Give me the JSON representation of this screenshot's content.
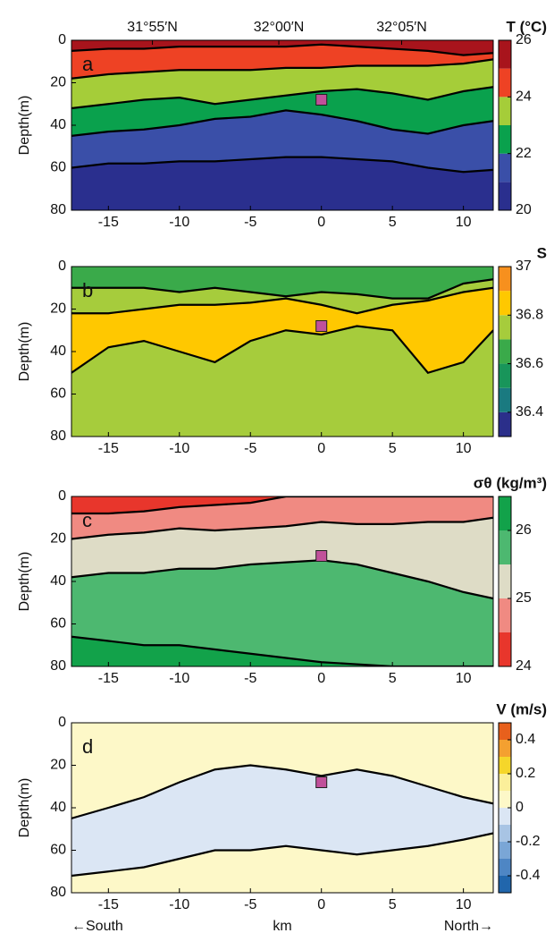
{
  "chart_data": [
    {
      "type": "contour",
      "title": "T (°C)",
      "panel_label": "a",
      "ylabel": "Depth(m)",
      "xlim": [
        -17.6,
        12.1
      ],
      "xticks": [
        -15,
        -10,
        -5,
        0,
        5,
        10
      ],
      "ylim": [
        0,
        80
      ],
      "yticks": [
        0,
        20,
        40,
        60,
        80
      ],
      "y_inverted": true,
      "x2ticks": [
        {
          "value": -11.9,
          "label": "31°55′N"
        },
        {
          "value": -3.0,
          "label": "32°00′N"
        },
        {
          "value": 5.65,
          "label": "32°05′N"
        }
      ],
      "x": [
        -17.6,
        -15,
        -12.5,
        -10,
        -7.5,
        -5,
        -2.5,
        0,
        2.5,
        5,
        7.5,
        10,
        12.1
      ],
      "contours": [
        {
          "level": 25,
          "depth": [
            5,
            4,
            4,
            3,
            3,
            3,
            3,
            2,
            3,
            4,
            5,
            7,
            6
          ]
        },
        {
          "level": 24,
          "depth": [
            18,
            16,
            15,
            14,
            14,
            14,
            13,
            13,
            12,
            12,
            12,
            11,
            9
          ]
        },
        {
          "level": 23,
          "depth": [
            32,
            30,
            28,
            27,
            30,
            28,
            26,
            24,
            23,
            25,
            28,
            24,
            22
          ]
        },
        {
          "level": 22,
          "depth": [
            45,
            43,
            42,
            40,
            37,
            36,
            33,
            35,
            38,
            42,
            44,
            40,
            38
          ]
        },
        {
          "level": 21,
          "depth": [
            60,
            58,
            58,
            57,
            57,
            56,
            55,
            55,
            56,
            57,
            60,
            62,
            61
          ]
        }
      ],
      "levels": [
        20,
        21,
        22,
        23,
        24,
        25,
        26
      ],
      "colors": [
        "#2a2f8e",
        "#3a4fa8",
        "#0aa14d",
        "#a5cd39",
        "#ee4224",
        "#a8141c"
      ],
      "clim": [
        20,
        26
      ],
      "cticks": [
        20,
        22,
        24,
        26
      ],
      "marker": {
        "x": 0,
        "y": 28,
        "color": "#c0509a"
      }
    },
    {
      "type": "contour",
      "title": "S",
      "panel_label": "b",
      "ylabel": "Depth(m)",
      "xlim": [
        -17.6,
        12.1
      ],
      "xticks": [
        -15,
        -10,
        -5,
        0,
        5,
        10
      ],
      "ylim": [
        0,
        80
      ],
      "yticks": [
        0,
        20,
        40,
        60,
        80
      ],
      "y_inverted": true,
      "x": [
        -17.6,
        -15,
        -12.5,
        -10,
        -7.5,
        -5,
        -2.5,
        0,
        2.5,
        5,
        7.5,
        10,
        12.1
      ],
      "contours": [
        {
          "level": 36.7,
          "depth": [
            10,
            10,
            10,
            12,
            10,
            12,
            14,
            12,
            13,
            15,
            15,
            8,
            6
          ]
        },
        {
          "level": 36.8,
          "depth": [
            22,
            22,
            20,
            18,
            18,
            17,
            15,
            18,
            22,
            18,
            16,
            12,
            10
          ]
        },
        {
          "level": 36.8,
          "depth": [
            50,
            38,
            35,
            40,
            45,
            35,
            30,
            32,
            28,
            30,
            50,
            45,
            30
          ]
        }
      ],
      "levels": [
        36.3,
        36.4,
        36.5,
        36.6,
        36.7,
        36.8,
        36.9,
        37
      ],
      "colors": [
        "#2b2f8a",
        "#1a7a80",
        "#18955a",
        "#3aaa4a",
        "#a6cc3c",
        "#ffc800",
        "#f7901e"
      ],
      "clim": [
        36.3,
        37
      ],
      "cticks": [
        36.4,
        36.6,
        36.8,
        37
      ],
      "marker": {
        "x": 0,
        "y": 28,
        "color": "#c0509a"
      }
    },
    {
      "type": "contour",
      "title": "σθ (kg/m³)",
      "panel_label": "c",
      "ylabel": "Depth(m)",
      "xlim": [
        -17.6,
        12.1
      ],
      "xticks": [
        -15,
        -10,
        -5,
        0,
        5,
        10
      ],
      "ylim": [
        0,
        80
      ],
      "yticks": [
        0,
        20,
        40,
        60,
        80
      ],
      "y_inverted": true,
      "x": [
        -17.6,
        -15,
        -12.5,
        -10,
        -7.5,
        -5,
        -2.5,
        0,
        2.5,
        5,
        7.5,
        10,
        12.1
      ],
      "contours": [
        {
          "level": 24.5,
          "depth": [
            8,
            8,
            7,
            5,
            4,
            3,
            0,
            0,
            0,
            0,
            0,
            0,
            0
          ]
        },
        {
          "level": 25,
          "depth": [
            20,
            18,
            17,
            15,
            16,
            15,
            14,
            12,
            13,
            13,
            12,
            12,
            10
          ]
        },
        {
          "level": 25.5,
          "depth": [
            38,
            36,
            36,
            34,
            34,
            32,
            31,
            30,
            32,
            36,
            40,
            45,
            48
          ]
        },
        {
          "level": 26,
          "depth": [
            66,
            68,
            70,
            70,
            72,
            74,
            76,
            78,
            79,
            80,
            80,
            80,
            80
          ]
        }
      ],
      "levels": [
        24,
        24.5,
        25,
        25.5,
        26,
        26.5
      ],
      "colors": [
        "#e8362c",
        "#f08a82",
        "#dedcc6",
        "#4db870",
        "#12a24a"
      ],
      "clim": [
        24,
        26.5
      ],
      "cticks": [
        24,
        25,
        26
      ],
      "marker": {
        "x": 0,
        "y": 28,
        "color": "#c0509a"
      }
    },
    {
      "type": "contour",
      "title": "V (m/s)",
      "panel_label": "d",
      "ylabel": "Depth(m)",
      "xlabel": "km",
      "annotations": [
        "←South",
        "North→"
      ],
      "xlim": [
        -17.6,
        12.1
      ],
      "xticks": [
        -15,
        -10,
        -5,
        0,
        5,
        10
      ],
      "ylim": [
        0,
        80
      ],
      "yticks": [
        0,
        20,
        40,
        60,
        80
      ],
      "y_inverted": true,
      "x": [
        -17.6,
        -15,
        -12.5,
        -10,
        -7.5,
        -5,
        -2.5,
        0,
        2.5,
        5,
        7.5,
        10,
        12.1
      ],
      "contours": [
        {
          "level": 0,
          "depth": [
            45,
            40,
            35,
            28,
            22,
            20,
            22,
            25,
            22,
            25,
            30,
            35,
            38
          ]
        },
        {
          "level": 0,
          "depth": [
            72,
            70,
            68,
            64,
            60,
            60,
            58,
            60,
            62,
            60,
            58,
            55,
            52
          ]
        }
      ],
      "levels": [
        -0.5,
        -0.4,
        -0.3,
        -0.2,
        -0.1,
        0,
        0.1,
        0.2,
        0.3,
        0.4,
        0.5
      ],
      "colors": [
        "#2166ac",
        "#4e86c4",
        "#7aa6d6",
        "#a8c4e4",
        "#dbe6f4",
        "#fdf8c8",
        "#fbef9a",
        "#f5d62a",
        "#f4a030",
        "#e8601c"
      ],
      "clim": [
        -0.5,
        0.5
      ],
      "cticks": [
        0.4,
        0.2,
        0,
        -0.2,
        -0.4
      ],
      "marker": {
        "x": 0,
        "y": 28,
        "color": "#c0509a"
      }
    }
  ]
}
